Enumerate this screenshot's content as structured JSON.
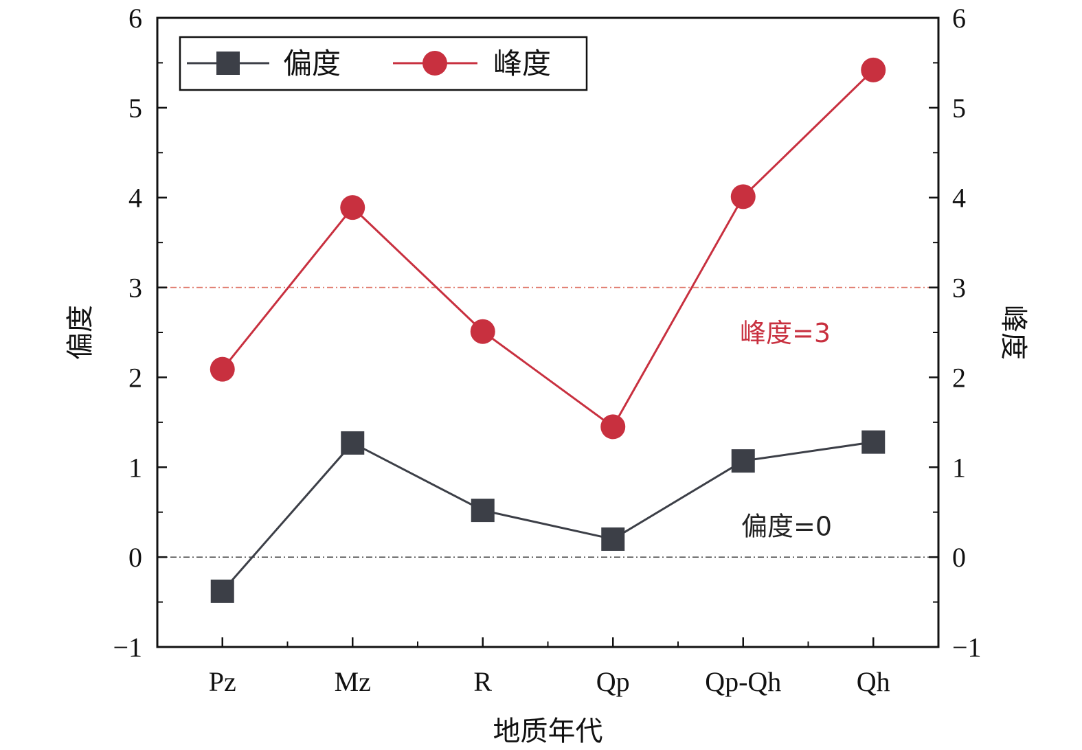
{
  "chart_data": {
    "type": "line",
    "title": "",
    "categories": [
      "Pz",
      "Mz",
      "R",
      "Qp",
      "Qp-Qh",
      "Qh"
    ],
    "xlabel": "地质年代",
    "ylabel": "偏度",
    "y2label": "峰度",
    "ylim": [
      -1,
      6
    ],
    "y2lim": [
      -1,
      6
    ],
    "yticks": [
      -1,
      0,
      1,
      2,
      3,
      4,
      5,
      6
    ],
    "ytick_labels": [
      "−1",
      "0",
      "1",
      "2",
      "3",
      "4",
      "5",
      "6"
    ],
    "grid": false,
    "legend": {
      "position": "top-left",
      "entries": [
        "偏度",
        "峰度"
      ]
    },
    "series": [
      {
        "name": "偏度",
        "axis": "left",
        "marker": "square",
        "color": "#3c3f47",
        "values": [
          -0.38,
          1.27,
          0.52,
          0.2,
          1.07,
          1.28
        ]
      },
      {
        "name": "峰度",
        "axis": "right",
        "marker": "circle",
        "color": "#c8303f",
        "values": [
          2.09,
          3.89,
          2.51,
          1.45,
          4.01,
          5.42
        ]
      }
    ],
    "reference_lines": [
      {
        "y": 3,
        "label": "峰度=3",
        "color": "#c8303f",
        "line_color": "#e07b6e"
      },
      {
        "y": 0,
        "label": "偏度=0",
        "color": "#222222",
        "line_color": "#555555"
      }
    ]
  }
}
